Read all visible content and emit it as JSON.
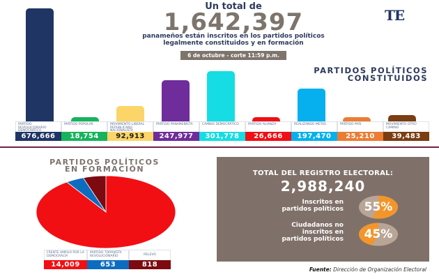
{
  "header": {
    "lead": "Un total de",
    "total": "1,642,397",
    "subtitle_line1": "panameños están inscritos en los partidos políticos",
    "subtitle_line2": "legalmente constituidos y en formación",
    "date": "6 de octubre - corte 11:59 p.m."
  },
  "logo": {
    "text": "TE"
  },
  "constituidos": {
    "title_line1": "PARTIDOS POLÍTICOS",
    "title_line2": "CONSTITUIDOS"
  },
  "formacion": {
    "title_line1": "PARTIDOS POLÍTICOS",
    "title_line2": "EN FORMACIÓN"
  },
  "registro": {
    "title": "TOTAL DEL REGISTRO ELECTORAL:",
    "total": "2,988,240",
    "inscritos_label_line1": "Inscritos en",
    "inscritos_label_line2": "partidos políticos",
    "inscritos_pct": "55%",
    "no_inscritos_label_line1": "Ciudadanos no",
    "no_inscritos_label_line2": "inscritos en",
    "no_inscritos_label_line3": "partidos políticos",
    "no_inscritos_pct": "45%"
  },
  "source": {
    "label": "Fuente:",
    "text": "Dirección de Organización Electoral"
  },
  "chart_data": [
    {
      "type": "bar",
      "title": "PARTIDOS POLÍTICOS CONSTITUIDOS",
      "categories": [
        "Partido Revolucionario Democrático",
        "Partido Popular",
        "Movimiento Liberal Republicano Nacionalista",
        "Partido Panameñista",
        "Cambio Democrático",
        "Partido Alianza",
        "Realizando Metas",
        "Partido País",
        "Movimiento Otro Camino"
      ],
      "values": [
        676666,
        18754,
        92913,
        247977,
        301778,
        26666,
        197470,
        25210,
        39483
      ],
      "labels": [
        "676,666",
        "18,754",
        "92,913",
        "247,977",
        "301,778",
        "26,666",
        "197,470",
        "25,210",
        "39,483"
      ],
      "colors": [
        "#1f3564",
        "#17b35c",
        "#fbd567",
        "#6f2d9b",
        "#15dde3",
        "#ef0f14",
        "#06b0ee",
        "#ea7d33",
        "#7b3d12"
      ],
      "xlabel": "",
      "ylabel": "",
      "grid": false,
      "legend": "none"
    },
    {
      "type": "pie",
      "title": "PARTIDOS POLÍTICOS EN FORMACIÓN",
      "categories": [
        "Frente Amplio por la Democracia",
        "Partido Torrijista Revolucionario",
        "Relevo"
      ],
      "values": [
        14009,
        653,
        818
      ],
      "labels": [
        "14,009",
        "653",
        "818"
      ],
      "colors": [
        "#f10f14",
        "#0c6cc0",
        "#7c0a10"
      ],
      "legend": "table below"
    },
    {
      "type": "pie",
      "title": "Inscritos en partidos políticos",
      "categories": [
        "Inscritos",
        "No inscritos"
      ],
      "values": [
        55,
        45
      ],
      "colors": [
        "#f2962c",
        "#b9a596"
      ]
    },
    {
      "type": "pie",
      "title": "Ciudadanos no inscritos en partidos políticos",
      "categories": [
        "No inscritos",
        "Inscritos"
      ],
      "values": [
        45,
        55
      ],
      "colors": [
        "#f2962c",
        "#b9a596"
      ]
    }
  ],
  "constituidos_table": [
    {
      "name": "Partido Revolucionario Democrático",
      "value": "676,666"
    },
    {
      "name": "Partido Popular",
      "value": "18,754"
    },
    {
      "name": "Movimiento Liberal Republicano Nacionalista",
      "value": "92,913"
    },
    {
      "name": "Partido Panameñista",
      "value": "247,977"
    },
    {
      "name": "Cambio Democrático",
      "value": "301,778"
    },
    {
      "name": "Partido Alianza",
      "value": "26,666"
    },
    {
      "name": "Realizando Metas",
      "value": "197,470"
    },
    {
      "name": "Partido País",
      "value": "25,210"
    },
    {
      "name": "Movimiento Otro Camino",
      "value": "39,483"
    }
  ],
  "formacion_table": [
    {
      "name": "Frente Amplio por la Democracia",
      "value": "14,009"
    },
    {
      "name": "Partido Torrijista Revolucionario",
      "value": "653"
    },
    {
      "name": "Relevo",
      "value": "818"
    }
  ]
}
